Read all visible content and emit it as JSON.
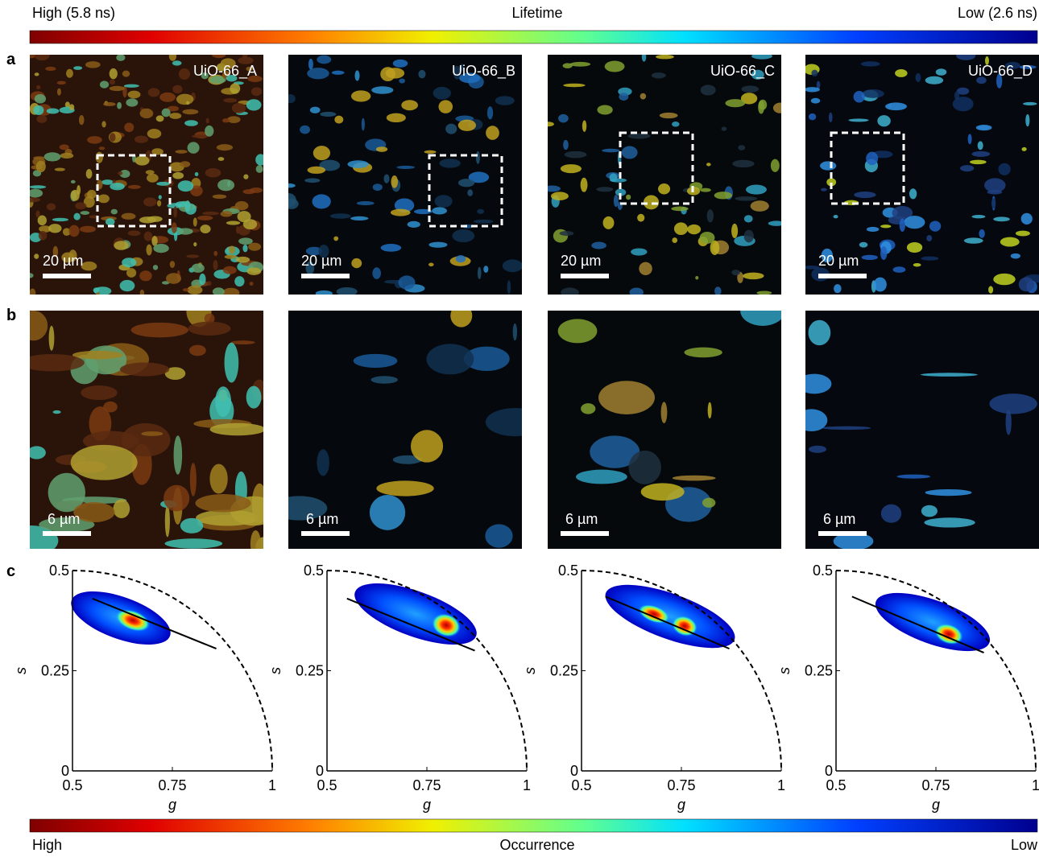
{
  "lifetime_bar": {
    "high": "High (5.8 ns)",
    "title": "Lifetime",
    "low": "Low (2.6 ns)"
  },
  "panel_labels": [
    "a",
    "b",
    "c"
  ],
  "row_a": [
    {
      "name": "UiO-66_A",
      "scale_bar": "20 µm"
    },
    {
      "name": "UiO-66_B",
      "scale_bar": "20 µm"
    },
    {
      "name": "UiO-66_C",
      "scale_bar": "20 µm"
    },
    {
      "name": "UiO-66_D",
      "scale_bar": "20 µm"
    }
  ],
  "row_b": [
    {
      "scale_bar": "6 µm"
    },
    {
      "scale_bar": "6 µm"
    },
    {
      "scale_bar": "6 µm"
    },
    {
      "scale_bar": "6 µm"
    }
  ],
  "phasor": {
    "x_label": "g",
    "y_label": "s",
    "xlim": [
      0.5,
      1
    ],
    "ylim": [
      0,
      0.5
    ],
    "xticks": [
      0.5,
      0.75,
      1
    ],
    "yticks": [
      0,
      0.25,
      0.5
    ],
    "fit_lines": [
      [
        [
          0.55,
          0.43
        ],
        [
          0.86,
          0.305
        ]
      ],
      [
        [
          0.55,
          0.43
        ],
        [
          0.87,
          0.3
        ]
      ],
      [
        [
          0.56,
          0.435
        ],
        [
          0.87,
          0.305
        ]
      ],
      [
        [
          0.54,
          0.435
        ],
        [
          0.87,
          0.295
        ]
      ]
    ]
  },
  "occurrence_bar": {
    "high": "High",
    "title": "Occurrence",
    "low": "Low"
  }
}
